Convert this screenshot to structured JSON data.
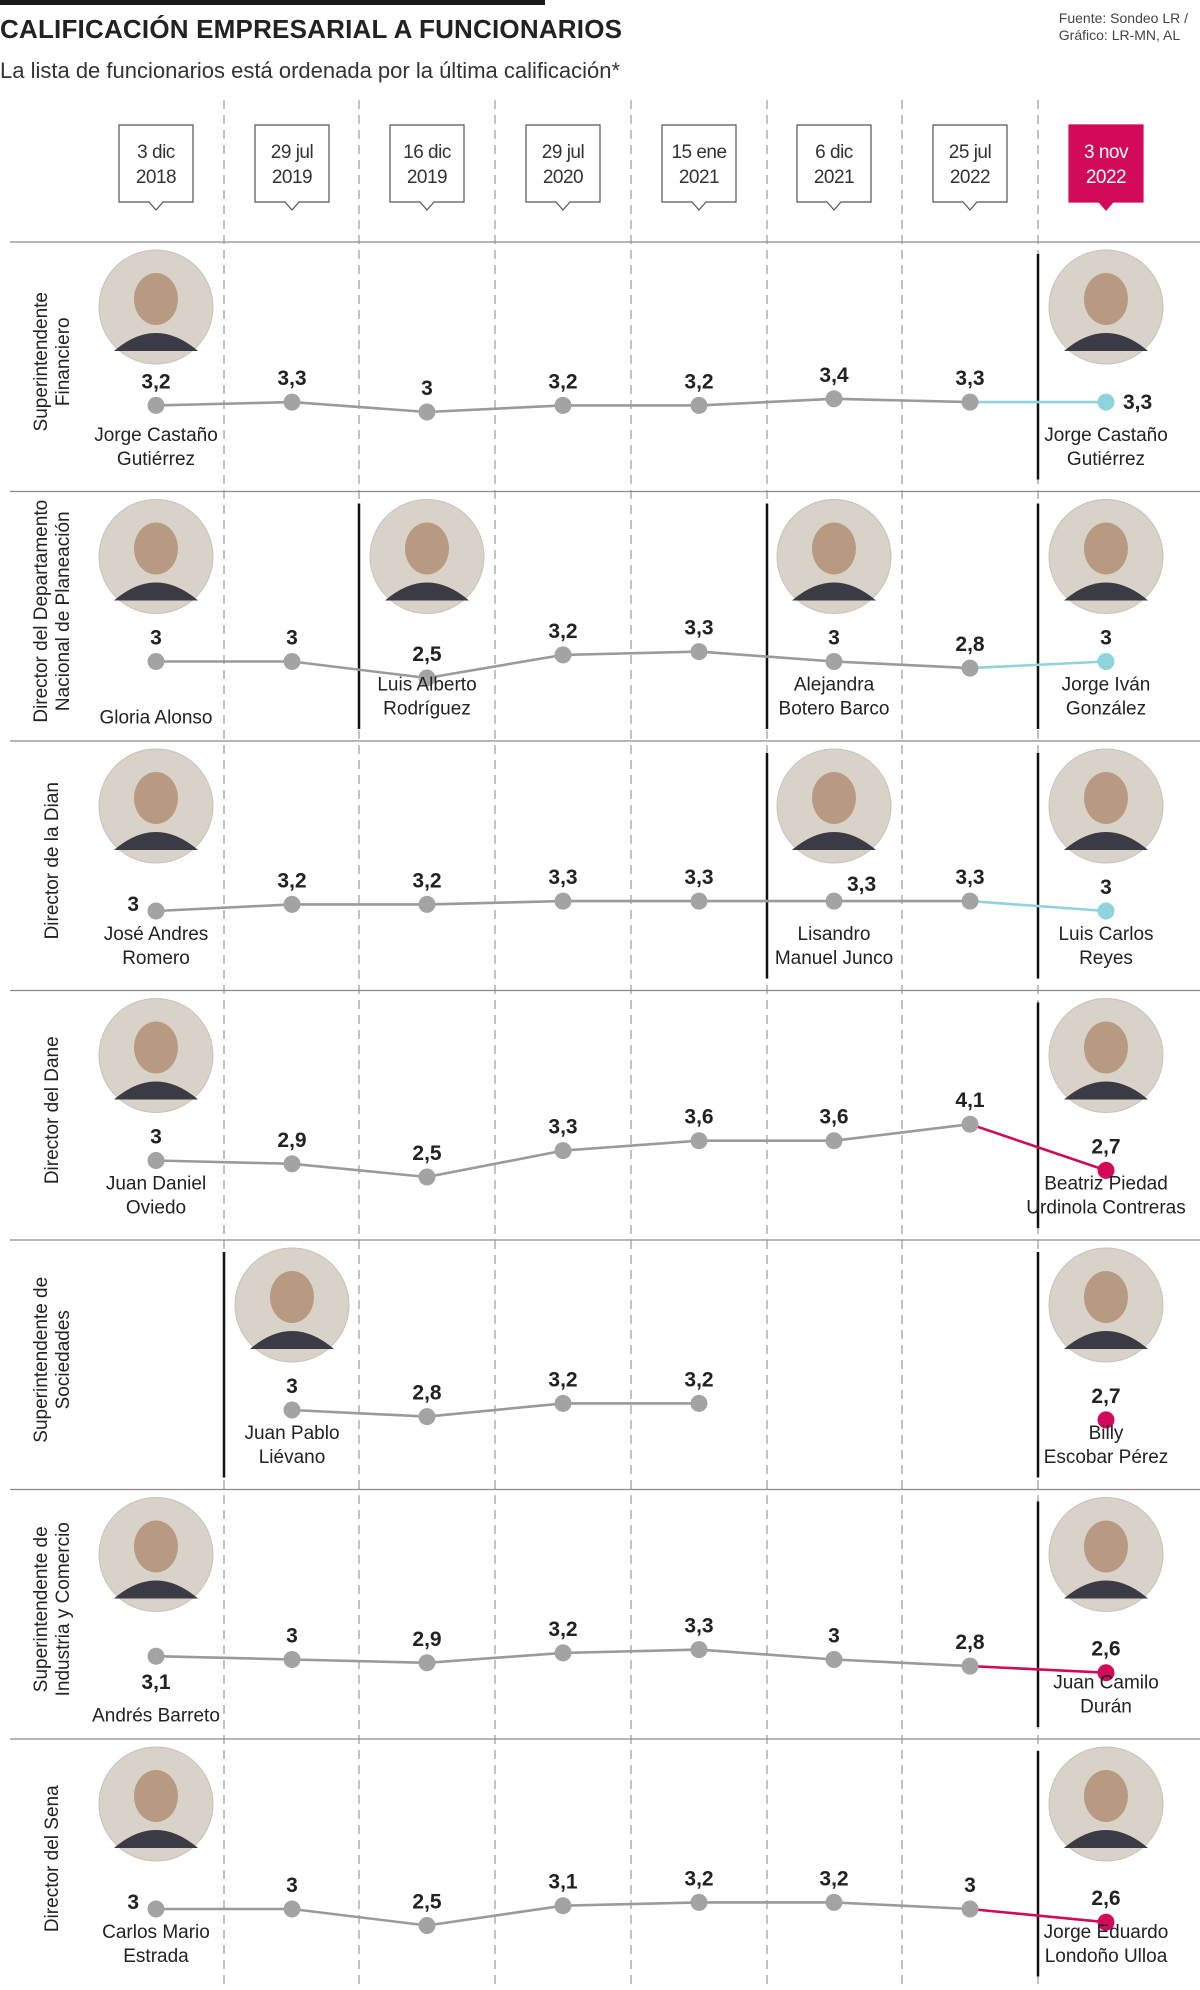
{
  "header": {
    "title": "CALIFICACIÓN EMPRESARIAL A FUNCIONARIOS",
    "subtitle": "La lista de funcionarios está ordenada por la última calificación*",
    "source_line1": "Fuente: Sondeo LR /",
    "source_line2": "Gráfico: LR-MN, AL"
  },
  "colors": {
    "line_gray": "#9a9a9a",
    "dot_gray": "#a3a3a3",
    "up_teal": "#8fd3dc",
    "down_magenta": "#d10a59",
    "highlight_date_bg": "#d10a59"
  },
  "chart_data": {
    "type": "line",
    "title": "CALIFICACIÓN EMPRESARIAL A FUNCIONARIOS",
    "x": [
      {
        "day": "3 dic",
        "year": "2018"
      },
      {
        "day": "29 jul",
        "year": "2019"
      },
      {
        "day": "16 dic",
        "year": "2019"
      },
      {
        "day": "29 jul",
        "year": "2020"
      },
      {
        "day": "15 ene",
        "year": "2021"
      },
      {
        "day": "6 dic",
        "year": "2021"
      },
      {
        "day": "25 jul",
        "year": "2022"
      },
      {
        "day": "3 nov",
        "year": "2022"
      }
    ],
    "highlight_date_index": 7,
    "rows": [
      {
        "position": [
          "Superintendente",
          "Financiero"
        ],
        "values": [
          3.2,
          3.3,
          3.0,
          3.2,
          3.2,
          3.4,
          3.3,
          3.3
        ],
        "labels": [
          "3,2",
          "3,3",
          "3",
          "3,2",
          "3,2",
          "3,4",
          "3,3",
          "3,3"
        ],
        "last_change": "up",
        "officials": [
          {
            "start": 0,
            "name": [
              "Jorge Castaño",
              "Gutiérrez"
            ]
          },
          {
            "start": 7,
            "name": [
              "Jorge Castaño",
              "Gutiérrez"
            ]
          }
        ]
      },
      {
        "position": [
          "Director del Departamento",
          "Nacional de Planeación"
        ],
        "values": [
          3.0,
          3.0,
          2.5,
          3.2,
          3.3,
          3.0,
          2.8,
          3.0
        ],
        "labels": [
          "3",
          "3",
          "2,5",
          "3,2",
          "3,3",
          "3",
          "2,8",
          "3"
        ],
        "last_change": "up",
        "officials": [
          {
            "start": 0,
            "name": [
              "Gloria Alonso"
            ]
          },
          {
            "start": 2,
            "name": [
              "Luis Alberto",
              "Rodríguez"
            ]
          },
          {
            "start": 5,
            "name": [
              "Alejandra",
              "Botero Barco"
            ]
          },
          {
            "start": 7,
            "name": [
              "Jorge Iván",
              "González"
            ]
          }
        ]
      },
      {
        "position": [
          "Director de la Dian"
        ],
        "values": [
          3.0,
          3.2,
          3.2,
          3.3,
          3.3,
          3.3,
          3.3,
          3.0
        ],
        "labels": [
          "3",
          "3,2",
          "3,2",
          "3,3",
          "3,3",
          "3,3",
          "3,3",
          "3"
        ],
        "last_change": "teal",
        "officials": [
          {
            "start": 0,
            "name": [
              "José Andres",
              "Romero"
            ]
          },
          {
            "start": 5,
            "name": [
              "Lisandro",
              "Manuel Junco"
            ]
          },
          {
            "start": 7,
            "name": [
              "Luis Carlos",
              "Reyes"
            ]
          }
        ]
      },
      {
        "position": [
          "Director del Dane"
        ],
        "values": [
          3.0,
          2.9,
          2.5,
          3.3,
          3.6,
          3.6,
          4.1,
          2.7
        ],
        "labels": [
          "3",
          "2,9",
          "2,5",
          "3,3",
          "3,6",
          "3,6",
          "4,1",
          "2,7"
        ],
        "last_change": "down",
        "officials": [
          {
            "start": 0,
            "name": [
              "Juan Daniel",
              "Oviedo"
            ]
          },
          {
            "start": 7,
            "name": [
              "Beatriz Piedad",
              "Urdinola Contreras"
            ]
          }
        ]
      },
      {
        "position": [
          "Superintendente de",
          "Sociedades"
        ],
        "values": [
          null,
          3.0,
          2.8,
          3.2,
          3.2,
          null,
          null,
          2.7
        ],
        "labels": [
          "",
          "3",
          "2,8",
          "3,2",
          "3,2",
          "",
          "",
          "2,7"
        ],
        "last_change": "isolated",
        "officials": [
          {
            "start": 1,
            "name": [
              "Juan Pablo",
              "Liévano"
            ]
          },
          {
            "start": 7,
            "name": [
              "Billy",
              "Escobar Pérez"
            ]
          }
        ]
      },
      {
        "position": [
          "Superintendente de",
          "Industria y Comercio"
        ],
        "values": [
          3.1,
          3.0,
          2.9,
          3.2,
          3.3,
          3.0,
          2.8,
          2.6
        ],
        "labels": [
          "3,1",
          "3",
          "2,9",
          "3,2",
          "3,3",
          "3",
          "2,8",
          "2,6"
        ],
        "last_change": "down",
        "officials": [
          {
            "start": 0,
            "name": [
              "Andrés Barreto"
            ]
          },
          {
            "start": 7,
            "name": [
              "Juan Camilo",
              "Durán"
            ]
          }
        ]
      },
      {
        "position": [
          "Director del Sena"
        ],
        "values": [
          3.0,
          3.0,
          2.5,
          3.1,
          3.2,
          3.2,
          3.0,
          2.6
        ],
        "labels": [
          "3",
          "3",
          "2,5",
          "3,1",
          "3,2",
          "3,2",
          "3",
          "2,6"
        ],
        "last_change": "down",
        "officials": [
          {
            "start": 0,
            "name": [
              "Carlos Mario",
              "Estrada"
            ]
          },
          {
            "start": 7,
            "name": [
              "Jorge Eduardo",
              "Londoño Ulloa"
            ]
          }
        ]
      }
    ]
  }
}
